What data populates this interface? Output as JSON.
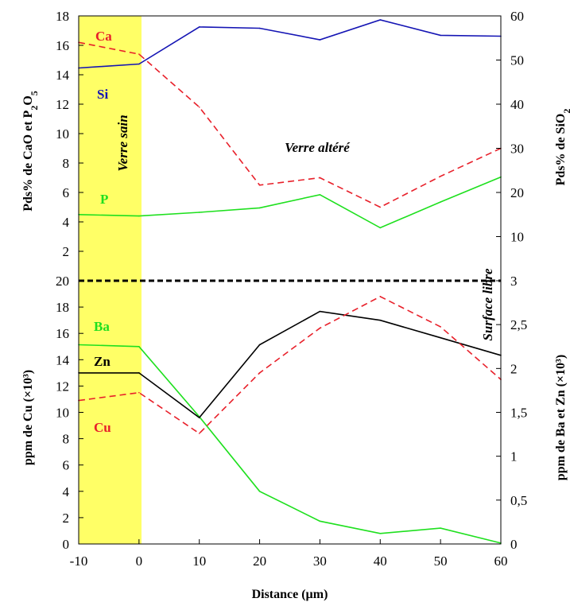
{
  "chart_data": [
    {
      "type": "line",
      "panel": "top",
      "x": [
        -10,
        0,
        10,
        20,
        30,
        40,
        50,
        60
      ],
      "xlim": [
        -10,
        60
      ],
      "ylabel_left": "Pds% de CaO et P2O5",
      "ylabel_right": "Pds% de SiO2",
      "ylim_left": [
        0,
        18
      ],
      "ylim_right": [
        0,
        60
      ],
      "yticks_left": [
        2,
        4,
        6,
        8,
        10,
        12,
        14,
        16,
        18
      ],
      "yticks_right": [
        10,
        20,
        30,
        40,
        50,
        60
      ],
      "series": [
        {
          "name": "Ca",
          "axis": "left",
          "color": "#e8202a",
          "dash": true,
          "values": [
            16.2,
            15.4,
            11.8,
            6.5,
            7.0,
            5.0,
            7.1,
            9.0
          ]
        },
        {
          "name": "Si",
          "axis": "right",
          "color": "#1414b4",
          "dash": false,
          "values": [
            48.2,
            49.1,
            57.5,
            57.2,
            54.6,
            59.1,
            55.6,
            55.4
          ]
        },
        {
          "name": "P",
          "axis": "left",
          "color": "#1ee01e",
          "dash": false,
          "values": [
            4.5,
            4.4,
            4.65,
            4.95,
            5.85,
            3.6,
            5.35,
            7.05
          ]
        }
      ],
      "annotations": [
        "Verre sain",
        "Verre altéré"
      ]
    },
    {
      "type": "line",
      "panel": "bottom",
      "x": [
        -10,
        0,
        10,
        20,
        30,
        40,
        50,
        60
      ],
      "xlim": [
        -10,
        60
      ],
      "xlabel": "Distance (µm)",
      "xticks": [
        -10,
        0,
        10,
        20,
        30,
        40,
        50,
        60
      ],
      "ylabel_left": "ppm de Cu (×10³)",
      "ylabel_right": "ppm de Ba et Zn (×10³)",
      "ylim_left": [
        0,
        20
      ],
      "ylim_right": [
        0,
        3
      ],
      "yticks_left": [
        0,
        2,
        4,
        6,
        8,
        10,
        12,
        14,
        16,
        18,
        20
      ],
      "yticks_right": [
        0,
        0.5,
        1,
        1.5,
        2,
        2.5,
        3
      ],
      "yticks_right_labels": [
        "0",
        "0,5",
        "1",
        "1,5",
        "2",
        "2,5",
        "3"
      ],
      "series": [
        {
          "name": "Ba",
          "axis": "right",
          "color": "#1ee01e",
          "dash": false,
          "values": [
            2.27,
            2.25,
            1.45,
            0.6,
            0.26,
            0.12,
            0.18,
            0.01
          ]
        },
        {
          "name": "Zn",
          "axis": "right",
          "color": "#000000",
          "dash": false,
          "values": [
            1.95,
            1.95,
            1.44,
            2.27,
            2.65,
            2.55,
            2.35,
            2.15
          ]
        },
        {
          "name": "Cu",
          "axis": "left",
          "color": "#e8202a",
          "dash": true,
          "values": [
            10.9,
            11.5,
            8.4,
            13.0,
            16.4,
            18.8,
            16.5,
            12.5
          ]
        }
      ],
      "annotations": [
        "Surface libre"
      ]
    }
  ]
}
